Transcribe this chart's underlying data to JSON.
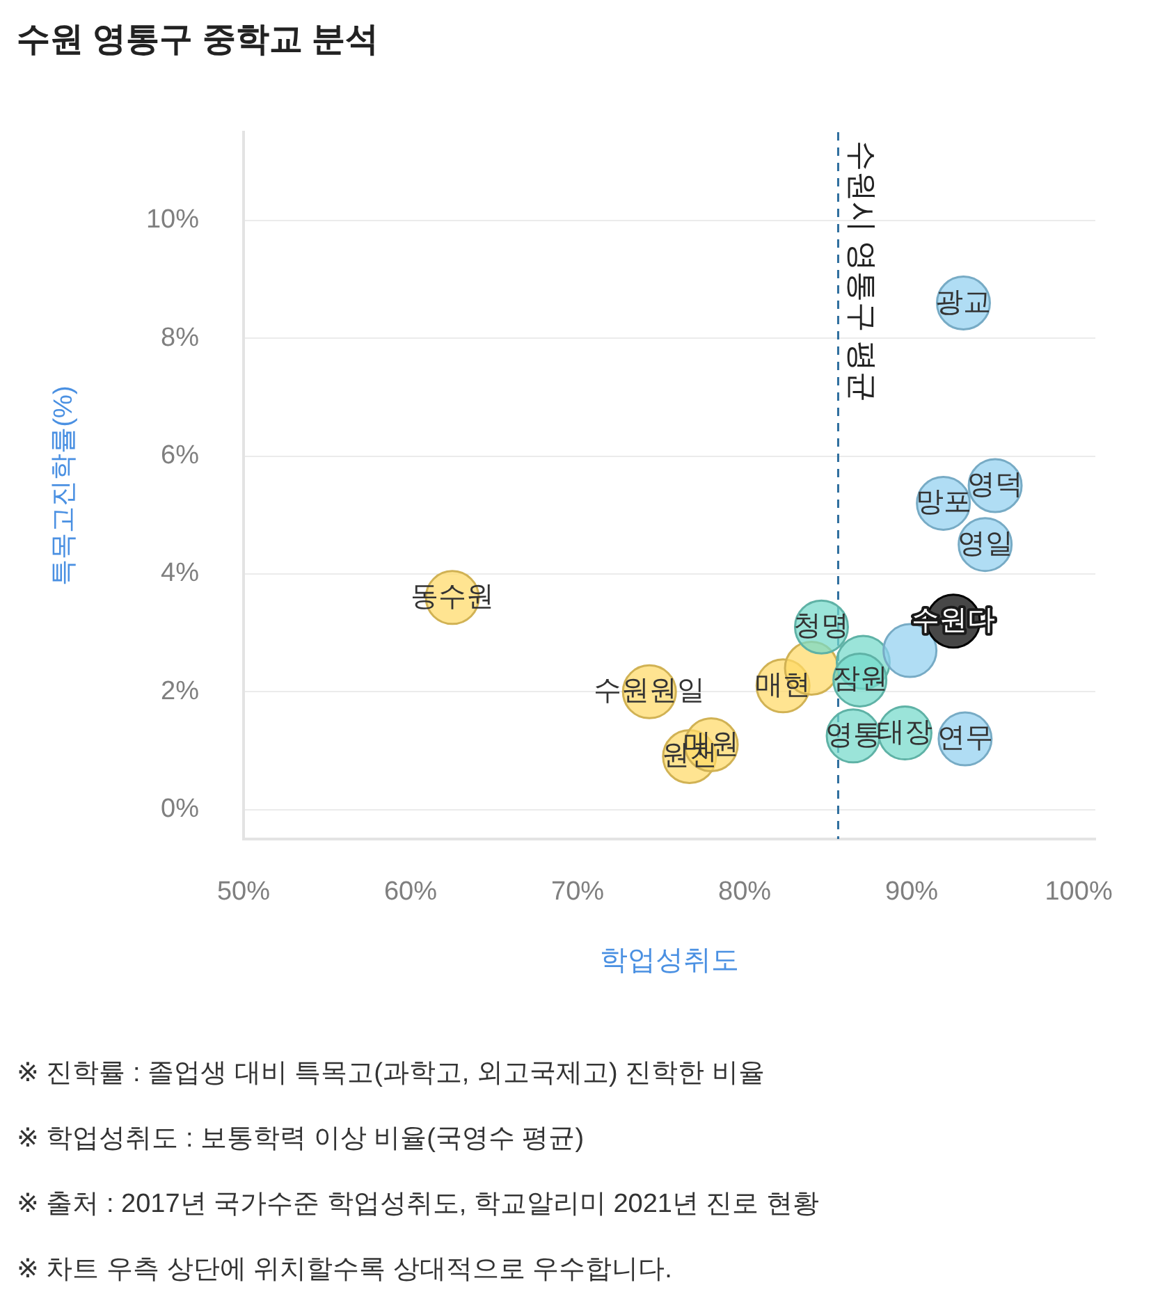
{
  "chart_data": {
    "type": "scatter",
    "title": "수원 영통구 중학교 분석",
    "xlabel": "학업성취도",
    "ylabel": "특목고진학률(%)",
    "x": [
      62.5,
      74.3,
      76.7,
      78.0,
      82.3,
      84.0,
      84.6,
      87.1,
      86.9,
      86.5,
      89.6,
      89.9,
      93.2,
      94.4,
      91.9,
      95.0,
      93.1,
      92.5
    ],
    "values": [
      3.6,
      2.0,
      0.9,
      1.1,
      2.1,
      2.4,
      3.1,
      2.5,
      2.2,
      1.25,
      1.3,
      2.7,
      1.2,
      4.5,
      5.2,
      5.5,
      8.6,
      3.2
    ],
    "colors": [
      "#ffd966",
      "#ffd966",
      "#ffd966",
      "#ffd966",
      "#ffd966",
      "#ffd966",
      "#74d9cb",
      "#74d9cb",
      "#74d9cb",
      "#74d9cb",
      "#74d9cb",
      "#91d0f0",
      "#91d0f0",
      "#91d0f0",
      "#91d0f0",
      "#91d0f0",
      "#91d0f0",
      "#000000"
    ],
    "marker": "circle",
    "xlim": [
      50,
      101
    ],
    "ylim": [
      -0.5,
      11.5
    ],
    "xticks": [
      {
        "value": 50,
        "label": "50%"
      },
      {
        "value": 60,
        "label": "60%"
      },
      {
        "value": 70,
        "label": "70%"
      },
      {
        "value": 80,
        "label": "80%"
      },
      {
        "value": 90,
        "label": "90%"
      },
      {
        "value": 100,
        "label": "100%"
      }
    ],
    "yticks": [
      {
        "value": 0,
        "label": "0%"
      },
      {
        "value": 2,
        "label": "2%"
      },
      {
        "value": 4,
        "label": "4%"
      },
      {
        "value": 6,
        "label": "6%"
      },
      {
        "value": 8,
        "label": "8%"
      },
      {
        "value": 10,
        "label": "10%"
      }
    ],
    "grid": "y",
    "ref_lines": [
      {
        "axis": "x",
        "value": 85.6,
        "label": "수원시 영통구 평균",
        "color": "#2e6e9e",
        "line_style": "dashed"
      }
    ],
    "annotations": [
      {
        "text": "동수원",
        "x": 62.5,
        "y": 3.6
      },
      {
        "text": "수원원일",
        "x": 74.3,
        "y": 2.0
      },
      {
        "text": "원천",
        "x": 76.7,
        "y": 0.9
      },
      {
        "text": "매원",
        "x": 78.0,
        "y": 1.1
      },
      {
        "text": "매현",
        "x": 82.3,
        "y": 2.1
      },
      {
        "text": "청명",
        "x": 84.6,
        "y": 3.1
      },
      {
        "text": "잠원",
        "x": 86.9,
        "y": 2.2
      },
      {
        "text": "영통",
        "x": 86.5,
        "y": 1.25
      },
      {
        "text": "태장",
        "x": 89.6,
        "y": 1.3
      },
      {
        "text": "연무",
        "x": 93.2,
        "y": 1.2
      },
      {
        "text": "영일",
        "x": 94.4,
        "y": 4.5
      },
      {
        "text": "망포",
        "x": 91.9,
        "y": 5.2
      },
      {
        "text": "영덕",
        "x": 95.0,
        "y": 5.5
      },
      {
        "text": "광교",
        "x": 93.1,
        "y": 8.6
      },
      {
        "text": "수원다",
        "x": 92.5,
        "y": 3.2
      },
      "※ 진학률 : 졸업생 대비 특목고(과학고, 외고국제고) 진학한 비율",
      "※ 학업성취도 : 보통학력 이상 비율(국영수 평균)",
      "※ 출처 : 2017년 국가수준 학업성취도, 학교알리미 2021년 진로 현황",
      "※ 차트 우측 상단에 위치할수록 상대적으로 우수합니다."
    ]
  }
}
